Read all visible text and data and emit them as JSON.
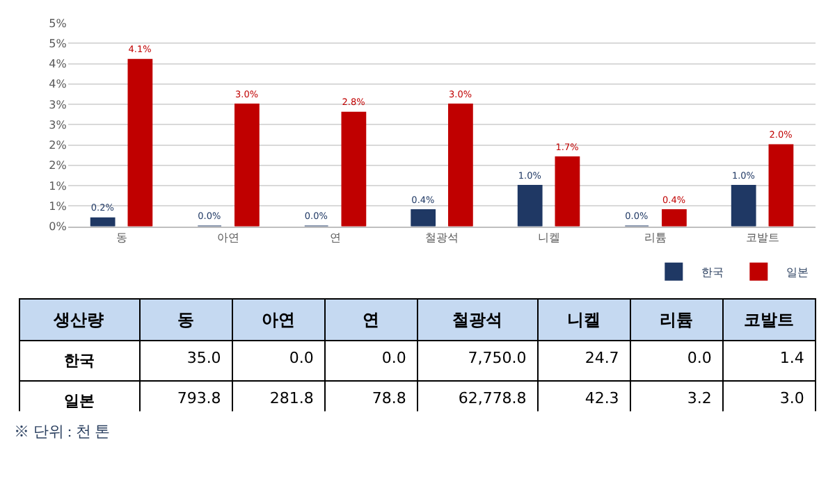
{
  "chart_data": [
    {
      "type": "bar",
      "categories": [
        "동",
        "아연",
        "연",
        "철광석",
        "니켈",
        "리튬",
        "코발트"
      ],
      "series": [
        {
          "name": "한국",
          "color": "#1f3864",
          "values": [
            0.2,
            0.0,
            0.0,
            0.4,
            1.0,
            0.0,
            1.0
          ],
          "value_labels": [
            "0.2%",
            "0.0%",
            "0.0%",
            "0.4%",
            "1.0%",
            "0.0%",
            "1.0%"
          ]
        },
        {
          "name": "일본",
          "color": "#c00000",
          "values": [
            4.1,
            3.0,
            2.8,
            3.0,
            1.7,
            0.4,
            2.0
          ],
          "value_labels": [
            "4.1%",
            "3.0%",
            "2.8%",
            "3.0%",
            "1.7%",
            "0.4%",
            "2.0%"
          ]
        }
      ],
      "ylim": [
        0,
        5
      ],
      "yticks": [
        {
          "value": 0,
          "label": "0%"
        },
        {
          "value": 0.5,
          "label": "1%"
        },
        {
          "value": 1,
          "label": "1%"
        },
        {
          "value": 1.5,
          "label": "2%"
        },
        {
          "value": 2,
          "label": "2%"
        },
        {
          "value": 2.5,
          "label": "3%"
        },
        {
          "value": 3,
          "label": "3%"
        },
        {
          "value": 3.5,
          "label": "4%"
        },
        {
          "value": 4,
          "label": "4%"
        },
        {
          "value": 4.5,
          "label": "5%"
        },
        {
          "value": 5,
          "label": "5%"
        }
      ],
      "grid": "y",
      "legend": "bottom right"
    },
    {
      "type": "other",
      "title": "생산량",
      "categories": [
        "동",
        "아연",
        "연",
        "철광석",
        "니켈",
        "리튬",
        "코발트"
      ],
      "series": [
        {
          "name": "한국",
          "values": [
            35.0,
            0.0,
            0.0,
            7750.0,
            24.7,
            0.0,
            1.4
          ],
          "value_labels": [
            "35.0",
            "0.0",
            "0.0",
            "7,750.0",
            "24.7",
            "0.0",
            "1.4"
          ]
        },
        {
          "name": "일본",
          "values": [
            793.8,
            281.8,
            78.8,
            62778.8,
            42.3,
            3.2,
            3.0
          ],
          "value_labels": [
            "793.8",
            "281.8",
            "78.8",
            "62,778.8",
            "42.3",
            "3.2",
            "3.0"
          ]
        }
      ],
      "annotations": [
        "※ 단위 : 천 톤"
      ]
    }
  ]
}
